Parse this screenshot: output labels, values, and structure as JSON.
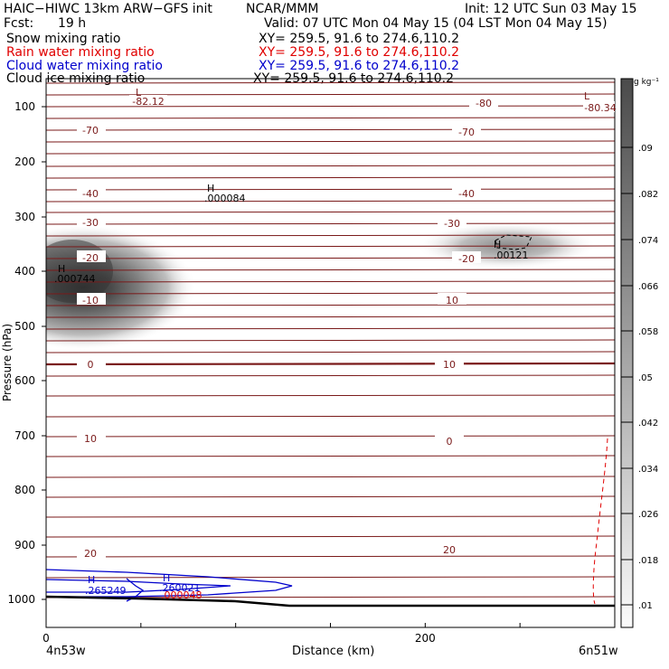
{
  "header": {
    "title_left": "HAIC−HIWC 13km ARW−GFS init",
    "center": "NCAR/MMM",
    "init": "Init: 12 UTC Sun 03 May 15",
    "fcst_label": "Fcst:",
    "fcst_value": "19 h",
    "valid": "Valid: 07 UTC Mon 04 May 15 (04 LST Mon 04 May 15)"
  },
  "fields": [
    {
      "name": "Snow mixing ratio",
      "xy": "XY= 259.5, 91.6 to 274.6,110.2",
      "color": "#000000"
    },
    {
      "name": "Rain water mixing ratio",
      "xy": "XY= 259.5, 91.6 to 274.6,110.2",
      "color": "#e00000"
    },
    {
      "name": "Cloud water mixing ratio",
      "xy": "XY= 259.5, 91.6 to 274.6,110.2",
      "color": "#0000cc"
    },
    {
      "name": "Cloud ice mixing ratio",
      "xy": "XY= 259.5, 91.6 to 274.6,110.2",
      "color": "#000000"
    }
  ],
  "axes": {
    "ylabel": "Pressure (hPa)",
    "xlabel": "Distance (km)",
    "x_start": "4n53w",
    "x_end": "6n51w"
  },
  "colorbar": {
    "unit": "g kg⁻¹",
    "ticks": [
      ".09",
      ".082",
      ".074",
      ".066",
      ".058",
      ".05",
      ".042",
      ".034",
      ".026",
      ".018",
      ".01"
    ]
  },
  "chart_data": {
    "type": "heatmap",
    "x_range": [
      0,
      300
    ],
    "x_ticks": [
      0,
      200
    ],
    "y_scale": "log-pressure",
    "y_range": [
      1050,
      50
    ],
    "y_ticks": [
      100,
      200,
      300,
      400,
      500,
      600,
      700,
      800,
      900,
      1000
    ],
    "temperature_contours": [
      {
        "value": -82.12,
        "label": "L"
      },
      {
        "value": -80.34,
        "label": "L"
      },
      {
        "value": -80
      },
      {
        "value": -70
      },
      {
        "value": -40
      },
      {
        "value": -30
      },
      {
        "value": -20
      },
      {
        "value": -10
      },
      {
        "value": 0
      },
      {
        "value": 10
      },
      {
        "value": 20
      }
    ],
    "extrema_labels": [
      {
        "mark": "L",
        "value": "-82.12",
        "x_km": 50,
        "p": 95
      },
      {
        "mark": "L",
        "value": "-80.34",
        "x_km": 295,
        "p": 95
      },
      {
        "mark": "H",
        "value": ".000084",
        "x_km": 90,
        "p": 250
      },
      {
        "mark": "H",
        "value": ".000744",
        "x_km": 5,
        "p": 400
      },
      {
        "mark": "H",
        "value": ".00121",
        "x_km": 245,
        "p": 350
      },
      {
        "mark": "H",
        "value": ".265249",
        "x_km": 22,
        "p": 975
      },
      {
        "mark": "H",
        "value": ".260021",
        "x_km": 63,
        "p": 975
      },
      {
        "mark": "H",
        "value": ".000048",
        "x_km": 63,
        "p": 995
      }
    ],
    "shading": [
      {
        "field": "Snow mixing ratio",
        "center_x_km": 22,
        "center_p": 425,
        "max": 0.09
      },
      {
        "field": "Snow mixing ratio",
        "center_x_km": 255,
        "center_p": 352,
        "max": 0.04
      }
    ],
    "contour_labels": {
      "left": [
        "-70",
        "-40",
        "-30",
        "-20",
        "-10",
        "0",
        "10",
        "20"
      ],
      "left_L": "-82.12",
      "right": [
        "-80",
        "-70",
        "-40",
        "-30",
        "-20",
        "10",
        "0",
        "10",
        "20"
      ],
      "right_L": "-80.34"
    }
  }
}
